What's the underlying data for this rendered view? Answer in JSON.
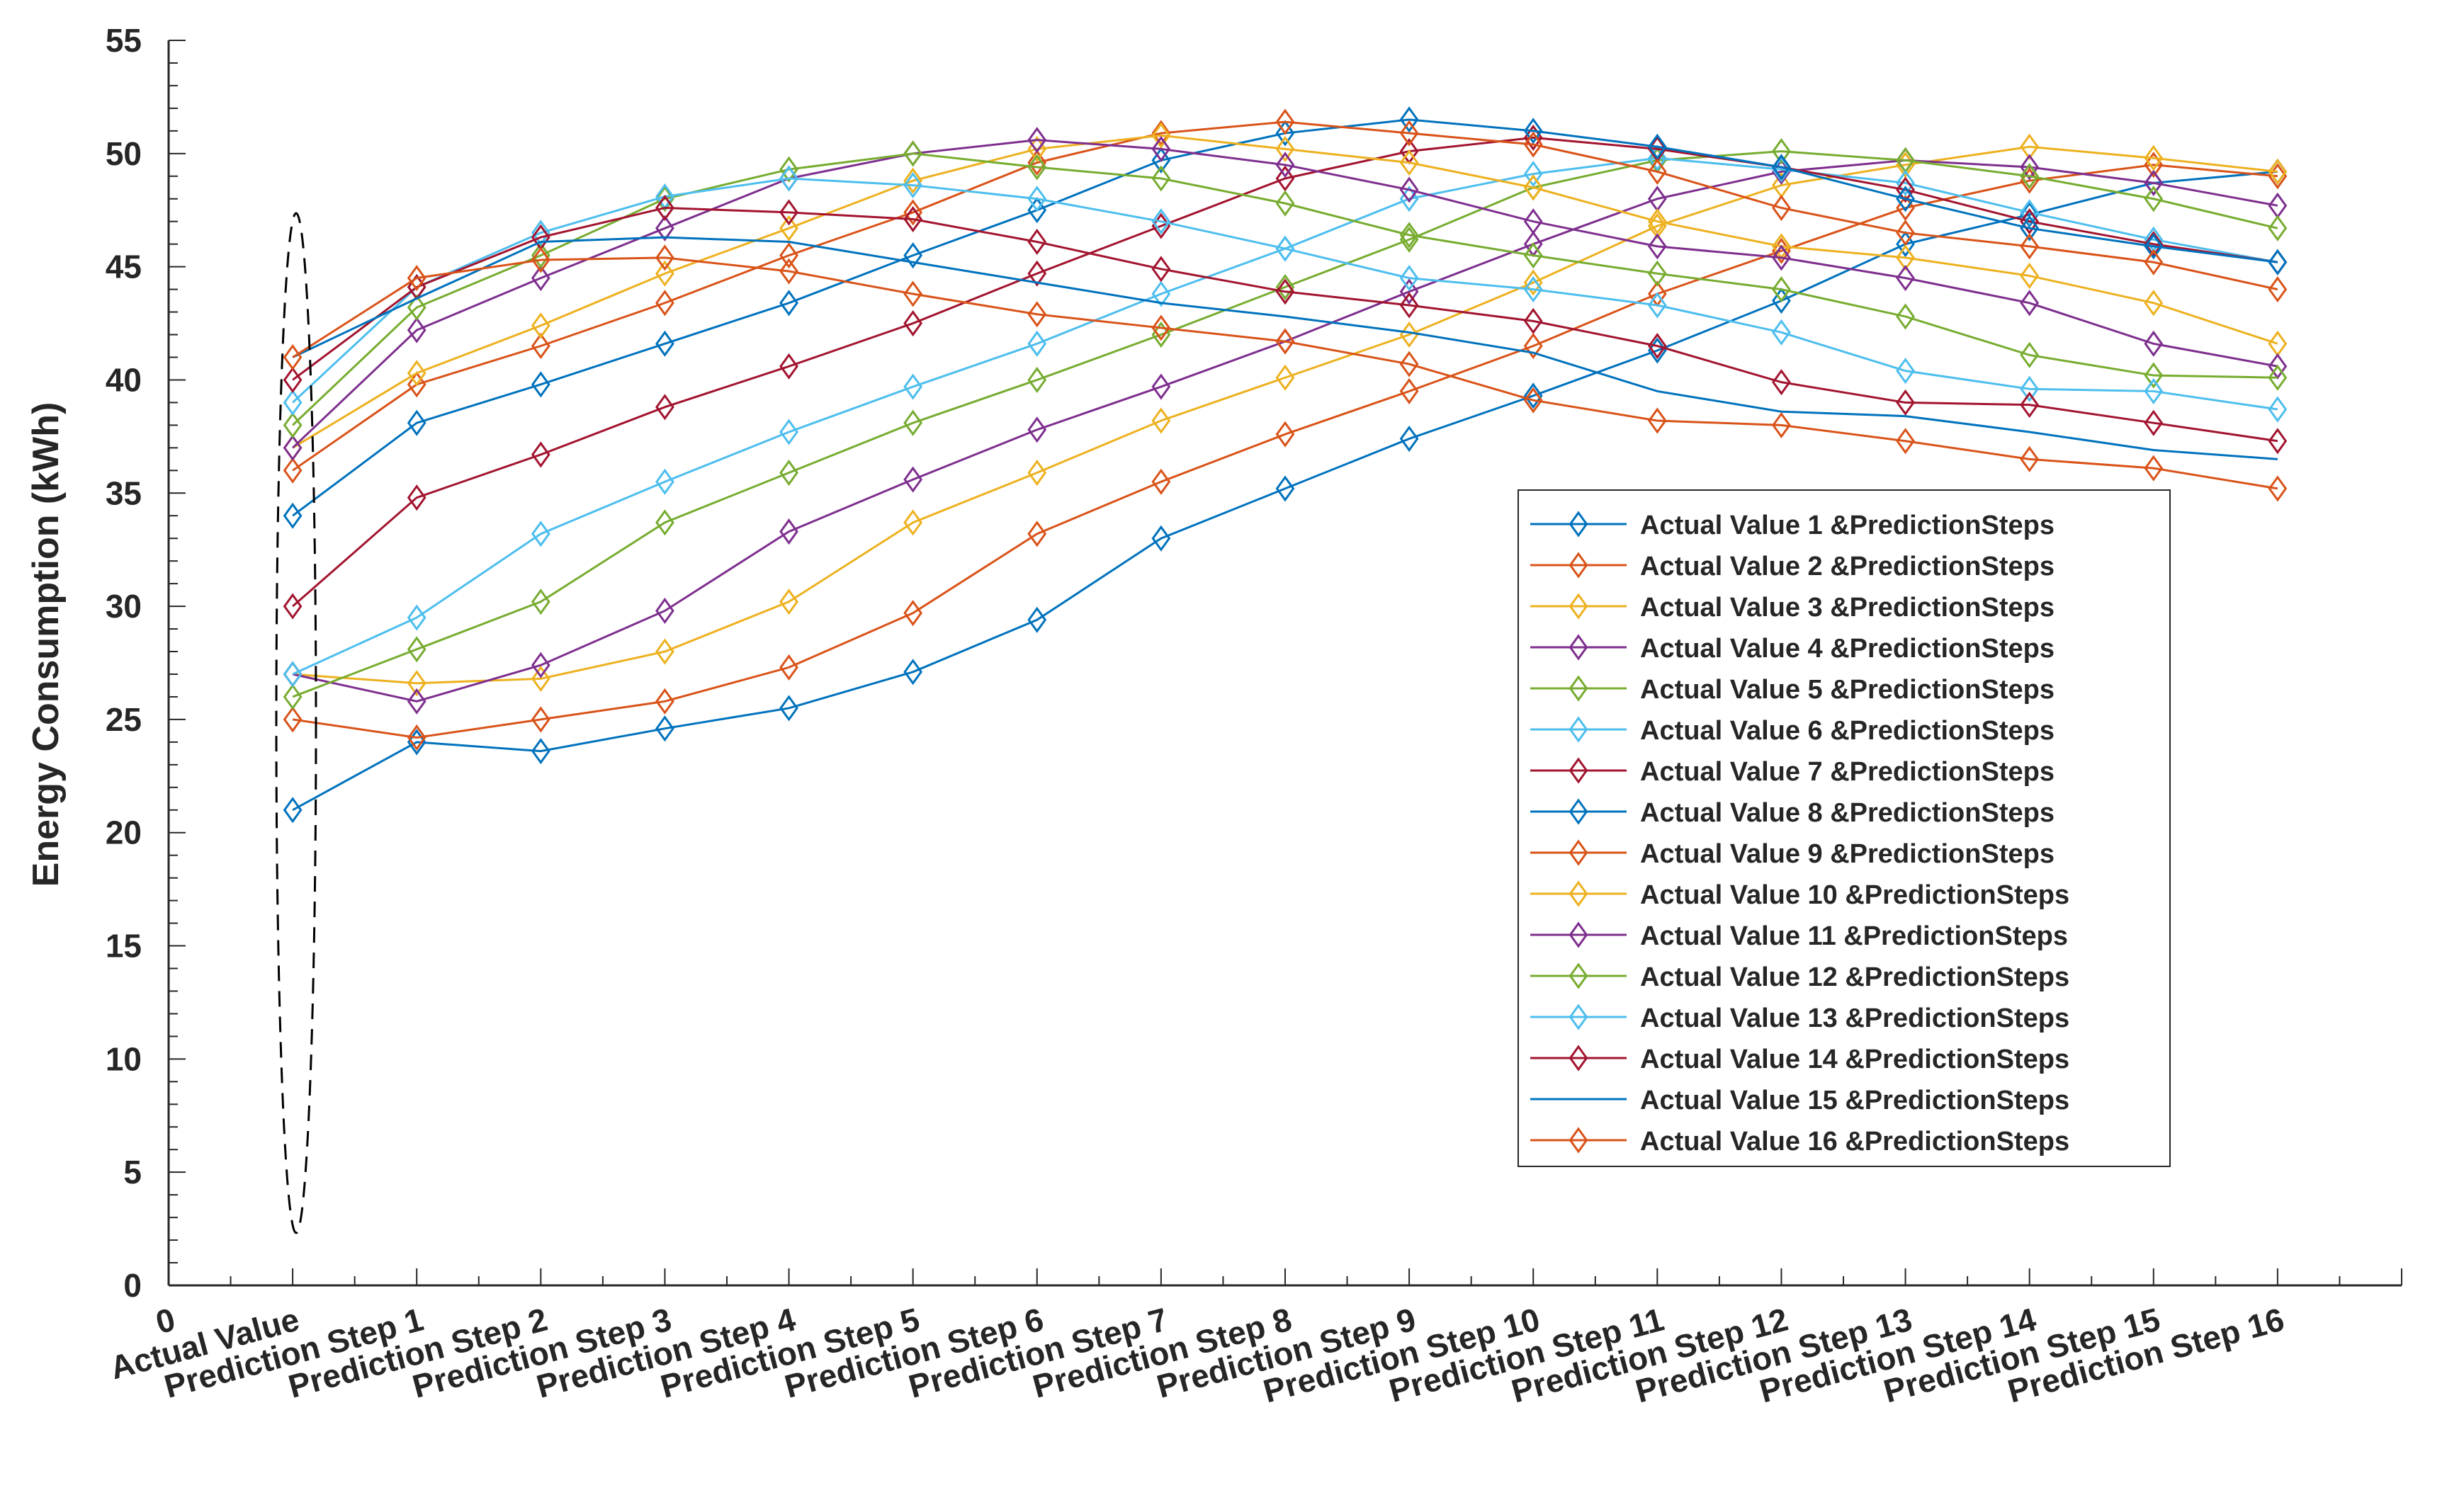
{
  "chart_data": {
    "type": "line",
    "title": "",
    "xlabel": "",
    "ylabel": "Energy Consumption (kWh)",
    "x_ticks": [
      "0",
      "Actual Value",
      "Prediction Step 1",
      "Prediction Step 2",
      "Prediction Step 3",
      "Prediction Step 4",
      "Prediction Step 5",
      "Prediction Step 6",
      "Prediction Step 7",
      "Prediction Step 8",
      "Prediction Step 9",
      "Prediction Step 10",
      "Prediction Step 11",
      "Prediction Step 12",
      "Prediction Step 13",
      "Prediction Step 14",
      "Prediction Step 15",
      "Prediction Step 16"
    ],
    "xlim": [
      0,
      18
    ],
    "ylim": [
      0,
      55
    ],
    "y_ticks": [
      0,
      5,
      10,
      15,
      20,
      25,
      30,
      35,
      40,
      45,
      50,
      55
    ],
    "legend_position": "center-right",
    "series": [
      {
        "name": "Actual Value 1 &PredictionSteps",
        "color": "#0072BD",
        "marker": "diamond",
        "values": [
          21,
          24,
          23.6,
          24.6,
          25.5,
          27.1,
          29.4,
          33,
          35.2,
          37.4,
          39.3,
          41.3,
          43.5,
          46,
          47.3,
          48.7,
          49.2
        ]
      },
      {
        "name": "Actual Value 2 &PredictionSteps",
        "color": "#D95319",
        "marker": "diamond",
        "values": [
          25,
          24.2,
          25,
          25.8,
          27.3,
          29.7,
          33.2,
          35.5,
          37.6,
          39.5,
          41.5,
          43.8,
          45.7,
          47.6,
          48.8,
          49.5,
          49
        ]
      },
      {
        "name": "Actual Value 3 &PredictionSteps",
        "color": "#EDB120",
        "marker": "diamond",
        "values": [
          27,
          26.6,
          26.8,
          28,
          30.2,
          33.7,
          35.9,
          38.2,
          40.1,
          42,
          44.3,
          46.8,
          48.6,
          49.5,
          50.3,
          49.8,
          49.2
        ]
      },
      {
        "name": "Actual Value 4 &PredictionSteps",
        "color": "#7E2F8E",
        "marker": "diamond",
        "values": [
          27,
          25.8,
          27.4,
          29.8,
          33.3,
          35.6,
          37.8,
          39.7,
          41.7,
          43.9,
          46,
          48,
          49.2,
          49.7,
          49.4,
          48.7,
          47.7
        ]
      },
      {
        "name": "Actual Value 5 &PredictionSteps",
        "color": "#77AC30",
        "marker": "diamond",
        "values": [
          26,
          28.1,
          30.2,
          33.7,
          35.9,
          38.1,
          40,
          42,
          44.1,
          46.2,
          48.5,
          49.7,
          50.1,
          49.7,
          49,
          48,
          46.7
        ]
      },
      {
        "name": "Actual Value 6 &PredictionSteps",
        "color": "#4DBEEE",
        "marker": "diamond",
        "values": [
          27,
          29.5,
          33.2,
          35.5,
          37.7,
          39.7,
          41.6,
          43.8,
          45.8,
          48,
          49.1,
          49.8,
          49.3,
          48.7,
          47.4,
          46.2,
          45.2
        ]
      },
      {
        "name": "Actual Value 7 &PredictionSteps",
        "color": "#A2142F",
        "marker": "diamond",
        "values": [
          30,
          34.8,
          36.7,
          38.8,
          40.6,
          42.5,
          44.7,
          46.8,
          48.9,
          50.1,
          50.7,
          50.2,
          49.4,
          48.4,
          47,
          46,
          45.2
        ]
      },
      {
        "name": "Actual Value 8 &PredictionSteps",
        "color": "#0072BD",
        "marker": "diamond",
        "values": [
          34,
          38.1,
          39.8,
          41.6,
          43.4,
          45.5,
          47.5,
          49.7,
          50.9,
          51.5,
          51,
          50.3,
          49.4,
          48,
          46.7,
          45.9,
          45.2
        ]
      },
      {
        "name": "Actual Value 9 &PredictionSteps",
        "color": "#D95319",
        "marker": "diamond",
        "values": [
          36,
          39.8,
          41.5,
          43.4,
          45.5,
          47.4,
          49.6,
          50.9,
          51.4,
          50.9,
          50.4,
          49.2,
          47.6,
          46.5,
          45.9,
          45.2,
          44
        ]
      },
      {
        "name": "Actual Value 10 &PredictionSteps",
        "color": "#EDB120",
        "marker": "diamond",
        "values": [
          37,
          40.3,
          42.4,
          44.7,
          46.7,
          48.8,
          50.2,
          50.8,
          50.2,
          49.6,
          48.5,
          47,
          45.9,
          45.4,
          44.6,
          43.4,
          41.6
        ]
      },
      {
        "name": "Actual Value 11 &PredictionSteps",
        "color": "#7E2F8E",
        "marker": "diamond",
        "values": [
          37,
          42.2,
          44.5,
          46.7,
          48.9,
          50,
          50.6,
          50.2,
          49.5,
          48.4,
          47,
          45.9,
          45.4,
          44.5,
          43.4,
          41.6,
          40.6
        ]
      },
      {
        "name": "Actual Value 12 &PredictionSteps",
        "color": "#77AC30",
        "marker": "diamond",
        "values": [
          38,
          43.2,
          45.5,
          48,
          49.3,
          50,
          49.4,
          48.9,
          47.8,
          46.4,
          45.5,
          44.7,
          44,
          42.8,
          41.1,
          40.2,
          40.1
        ]
      },
      {
        "name": "Actual Value 13 &PredictionSteps",
        "color": "#4DBEEE",
        "marker": "diamond",
        "values": [
          39,
          44.1,
          46.5,
          48.1,
          48.9,
          48.6,
          48,
          47,
          45.8,
          44.5,
          44,
          43.3,
          42.1,
          40.4,
          39.6,
          39.5,
          38.7
        ]
      },
      {
        "name": "Actual Value 14 &PredictionSteps",
        "color": "#A2142F",
        "marker": "diamond",
        "values": [
          40,
          44.1,
          46.3,
          47.6,
          47.4,
          47.1,
          46.1,
          44.9,
          43.9,
          43.3,
          42.6,
          41.5,
          39.9,
          39,
          38.9,
          38.1,
          37.3
        ]
      },
      {
        "name": "Actual Value 15 &PredictionSteps",
        "color": "#0072BD",
        "marker": "none",
        "values": [
          41,
          43.6,
          46.1,
          46.3,
          46.1,
          45.2,
          44.3,
          43.4,
          42.8,
          42.1,
          41.2,
          39.5,
          38.6,
          38.4,
          37.7,
          36.9,
          36.5
        ]
      },
      {
        "name": "Actual Value 16 &PredictionSteps",
        "color": "#D95319",
        "marker": "diamond",
        "values": [
          41,
          44.5,
          45.3,
          45.4,
          44.8,
          43.8,
          42.9,
          42.3,
          41.7,
          40.7,
          39.1,
          38.2,
          38,
          37.3,
          36.5,
          36.1,
          35.2
        ]
      }
    ]
  }
}
